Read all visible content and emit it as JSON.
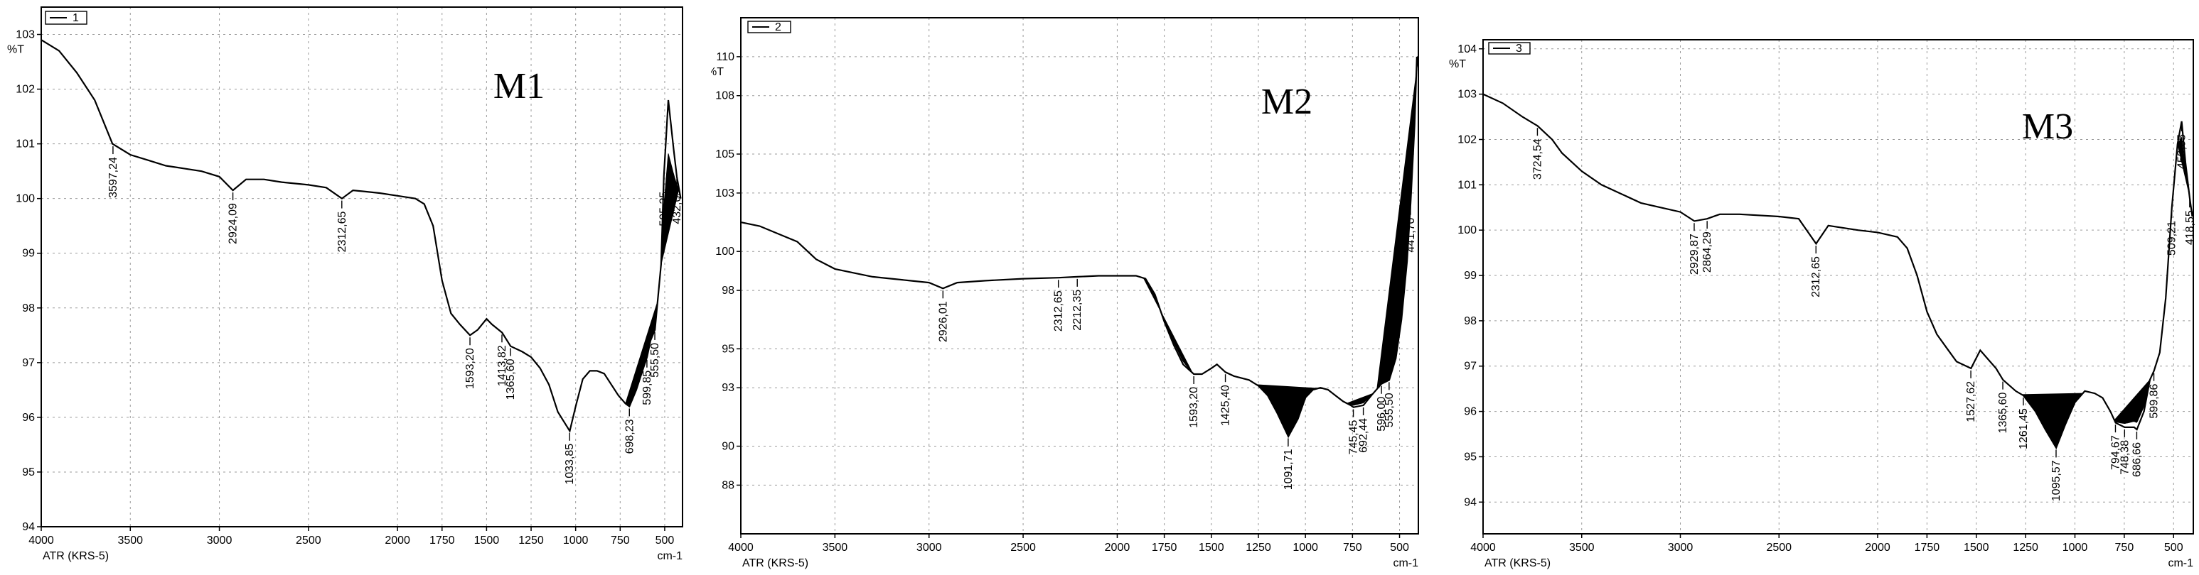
{
  "chart_data": [
    {
      "type": "line",
      "panel_label": "M1",
      "legend": "1",
      "ylabel": "%T",
      "xlabel_left": "ATR (KRS-5)",
      "xlabel_right": "cm-1",
      "xlim": [
        4000,
        400
      ],
      "ylim": [
        94,
        103.5
      ],
      "x_ticks": [
        4000,
        3500,
        3000,
        2500,
        2000,
        1750,
        1500,
        1250,
        1000,
        750,
        500
      ],
      "x_tick_labels": [
        "4000",
        "3500",
        "3000",
        "2500",
        "2000",
        "1750",
        "1500",
        "1250",
        "1000",
        "750",
        "500"
      ],
      "y_ticks": [
        94,
        95,
        96,
        97,
        98,
        99,
        100,
        101,
        102,
        103
      ],
      "y_tick_labels": [
        "94",
        "95",
        "96",
        "97",
        "98",
        "99",
        "100",
        "101",
        "102",
        "103"
      ],
      "x": [
        4000,
        3900,
        3800,
        3700,
        3600,
        3500,
        3400,
        3300,
        3200,
        3100,
        3000,
        2924,
        2850,
        2750,
        2650,
        2500,
        2400,
        2312,
        2250,
        2100,
        2000,
        1900,
        1850,
        1800,
        1750,
        1700,
        1650,
        1593,
        1550,
        1500,
        1470,
        1413,
        1365,
        1300,
        1250,
        1200,
        1150,
        1100,
        1033,
        1000,
        960,
        920,
        880,
        840,
        800,
        760,
        720,
        698,
        660,
        620,
        599,
        580,
        555,
        520,
        505,
        480,
        450,
        432,
        410
      ],
      "y": [
        102.9,
        102.7,
        102.3,
        101.8,
        101.0,
        100.8,
        100.7,
        100.6,
        100.55,
        100.5,
        100.4,
        100.15,
        100.35,
        100.35,
        100.3,
        100.25,
        100.2,
        100.0,
        100.15,
        100.1,
        100.05,
        100.0,
        99.9,
        99.5,
        98.5,
        97.9,
        97.7,
        97.5,
        97.6,
        97.8,
        97.7,
        97.55,
        97.3,
        97.2,
        97.1,
        96.9,
        96.6,
        96.1,
        95.75,
        96.2,
        96.7,
        96.85,
        96.85,
        96.8,
        96.6,
        96.4,
        96.25,
        96.2,
        96.5,
        96.9,
        97.1,
        97.4,
        97.6,
        98.8,
        100.4,
        101.8,
        100.9,
        100.4,
        100.0
      ],
      "peaks": [
        3597.24,
        2924.09,
        2312.65,
        1593.2,
        1413.82,
        1365.6,
        1033.85,
        698.23,
        599.85,
        555.5,
        505.35,
        432.05
      ],
      "peak_labels": [
        "3597,24",
        "2924,09",
        "2312,65",
        "1593,20",
        "1413,82",
        "1365,60",
        "1033,85",
        "698,23",
        "599,85",
        "555,50",
        "505,35",
        "432,05"
      ],
      "bands": [
        [
          720,
          540,
          0.9
        ],
        [
          520,
          420,
          0.6
        ]
      ]
    },
    {
      "type": "line",
      "panel_label": "M2",
      "legend": "2",
      "ylabel": "%T",
      "xlabel_left": "ATR (KRS-5)",
      "xlabel_right": "cm-1",
      "xlim": [
        4000,
        400
      ],
      "ylim": [
        85.5,
        112
      ],
      "x_ticks": [
        4000,
        3500,
        3000,
        2500,
        2000,
        1750,
        1500,
        1250,
        1000,
        750,
        500
      ],
      "x_tick_labels": [
        "4000",
        "3500",
        "3000",
        "2500",
        "2000",
        "1750",
        "1500",
        "1250",
        "1000",
        "750",
        "500"
      ],
      "y_ticks": [
        88,
        90,
        93,
        95,
        98,
        100,
        103,
        105,
        108,
        110
      ],
      "y_tick_labels": [
        "88",
        "90",
        "93",
        "95",
        "98",
        "100",
        "103",
        "105",
        "108",
        "110"
      ],
      "x": [
        4000,
        3900,
        3800,
        3700,
        3600,
        3500,
        3400,
        3300,
        3200,
        3100,
        3000,
        2926,
        2850,
        2700,
        2500,
        2312,
        2212,
        2100,
        2000,
        1900,
        1850,
        1800,
        1750,
        1700,
        1650,
        1593,
        1550,
        1500,
        1470,
        1425,
        1380,
        1300,
        1250,
        1200,
        1150,
        1091,
        1040,
        1000,
        960,
        920,
        880,
        840,
        800,
        760,
        745,
        692,
        650,
        596,
        555,
        520,
        490,
        460,
        441,
        420,
        408
      ],
      "y": [
        101.5,
        101.3,
        100.9,
        100.5,
        99.6,
        99.1,
        98.9,
        98.7,
        98.6,
        98.5,
        98.4,
        98.1,
        98.4,
        98.5,
        98.6,
        98.65,
        98.7,
        98.75,
        98.75,
        98.75,
        98.6,
        97.8,
        96.4,
        95.2,
        94.2,
        93.7,
        93.7,
        94.0,
        94.2,
        93.8,
        93.6,
        93.4,
        93.1,
        92.6,
        91.7,
        90.5,
        91.4,
        92.5,
        92.9,
        93.0,
        92.9,
        92.6,
        92.3,
        92.1,
        92.0,
        92.1,
        92.6,
        93.2,
        93.4,
        94.5,
        96.5,
        99.5,
        102.5,
        106.5,
        110.0
      ],
      "peaks": [
        2926.01,
        2312.65,
        2212.35,
        1593.2,
        1425.4,
        1091.71,
        745.45,
        692.44,
        596.0,
        555.5,
        441.7
      ],
      "peak_labels": [
        "2926,01",
        "2312,65",
        "2212,35",
        "1593,20",
        "1425,40",
        "1091,71",
        "745,45",
        "692,44",
        "596,00",
        "555,50",
        "441,70"
      ],
      "bands": [
        [
          1860,
          1600,
          0.7
        ],
        [
          1260,
          900,
          1.0
        ],
        [
          780,
          640,
          0.7
        ],
        [
          620,
          400,
          1.0
        ]
      ]
    },
    {
      "type": "line",
      "panel_label": "M3",
      "legend": "3",
      "ylabel": "%T",
      "xlabel_left": "ATR (KRS-5)",
      "xlabel_right": "cm-1",
      "xlim": [
        4000,
        400
      ],
      "ylim": [
        93.3,
        104.2
      ],
      "x_ticks": [
        4000,
        3500,
        3000,
        2500,
        2000,
        1750,
        1500,
        1250,
        1000,
        750,
        500
      ],
      "x_tick_labels": [
        "4000",
        "3500",
        "3000",
        "2500",
        "2000",
        "1750",
        "1500",
        "1250",
        "1000",
        "750",
        "500"
      ],
      "y_ticks": [
        94,
        95,
        96,
        97,
        98,
        99,
        100,
        101,
        102,
        103,
        104
      ],
      "y_tick_labels": [
        "94",
        "95",
        "96",
        "97",
        "98",
        "99",
        "100",
        "101",
        "102",
        "103",
        "104"
      ],
      "x": [
        4000,
        3900,
        3800,
        3724,
        3650,
        3600,
        3500,
        3400,
        3300,
        3200,
        3100,
        3000,
        2929,
        2864,
        2800,
        2700,
        2500,
        2400,
        2312,
        2250,
        2100,
        2000,
        1900,
        1850,
        1800,
        1750,
        1700,
        1650,
        1600,
        1527,
        1480,
        1450,
        1400,
        1365,
        1300,
        1261,
        1200,
        1150,
        1095,
        1050,
        1000,
        950,
        900,
        860,
        820,
        794,
        748,
        700,
        686,
        650,
        620,
        599,
        570,
        540,
        509,
        480,
        459,
        440,
        418,
        405
      ],
      "y": [
        103.0,
        102.8,
        102.5,
        102.3,
        102.0,
        101.7,
        101.3,
        101.0,
        100.8,
        100.6,
        100.5,
        100.4,
        100.2,
        100.25,
        100.35,
        100.35,
        100.3,
        100.25,
        99.7,
        100.1,
        100.0,
        99.95,
        99.85,
        99.6,
        99.0,
        98.2,
        97.7,
        97.4,
        97.1,
        96.95,
        97.35,
        97.2,
        96.95,
        96.7,
        96.45,
        96.35,
        96.0,
        95.6,
        95.2,
        95.7,
        96.2,
        96.45,
        96.4,
        96.3,
        96.0,
        95.75,
        95.65,
        95.65,
        95.6,
        96.0,
        96.7,
        96.9,
        97.3,
        98.5,
        100.5,
        101.9,
        102.4,
        101.5,
        100.7,
        100.3
      ],
      "peaks": [
        3724.54,
        2929.87,
        2864.29,
        2312.65,
        1527.62,
        1365.6,
        1261.45,
        1095.57,
        794.67,
        748.38,
        686.66,
        599.86,
        509.21,
        459.05,
        418.55
      ],
      "peak_labels": [
        "3724,54",
        "2929,87",
        "2864,29",
        "2312,65",
        "1527,62",
        "1365,60",
        "1261,45",
        "1095,57",
        "794,67",
        "748,38",
        "686,66",
        "599,86",
        "509,21",
        "459,05",
        "418,55"
      ],
      "bands": [
        [
          1270,
          960,
          1.0
        ],
        [
          800,
          620,
          0.8
        ],
        [
          480,
          420,
          0.6
        ]
      ]
    }
  ]
}
